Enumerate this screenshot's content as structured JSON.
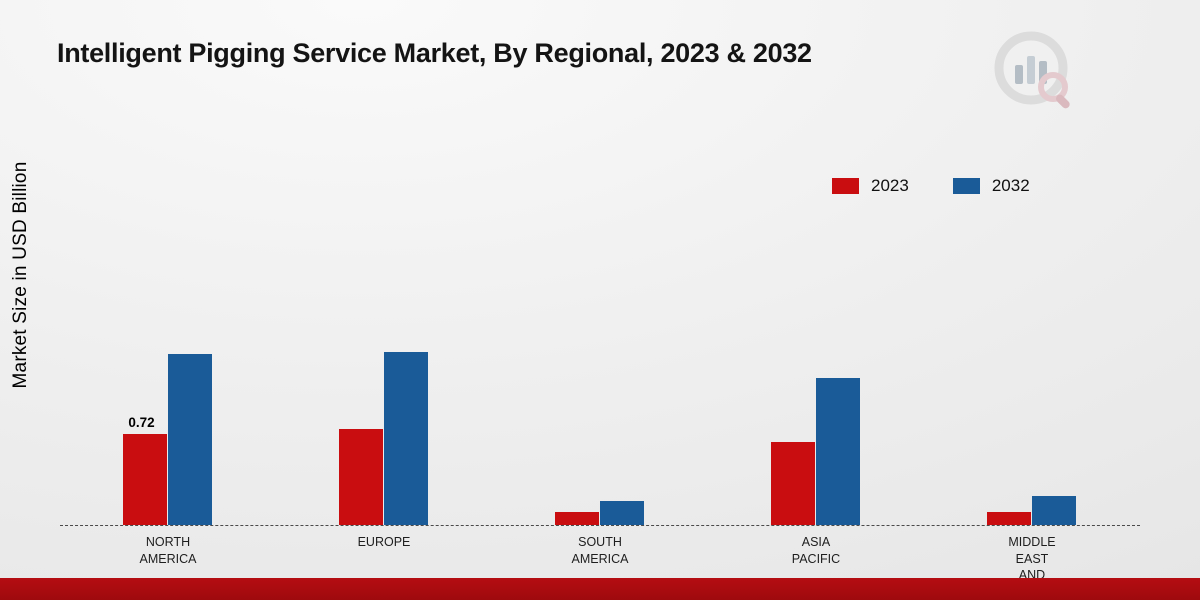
{
  "chart_data": {
    "type": "bar",
    "title": "Intelligent Pigging Service Market, By Regional, 2023 & 2032",
    "ylabel": "Market Size in USD Billion",
    "categories": [
      "NORTH\nAMERICA",
      "EUROPE",
      "SOUTH\nAMERICA",
      "ASIA\nPACIFIC",
      "MIDDLE\nEAST\nAND\nAFRICA"
    ],
    "series": [
      {
        "name": "2023",
        "color": "#c90d10",
        "values": [
          0.72,
          0.76,
          0.1,
          0.66,
          0.1
        ],
        "value_labels": [
          "0.72",
          "",
          "",
          "",
          ""
        ]
      },
      {
        "name": "2032",
        "color": "#1a5b98",
        "values": [
          1.36,
          1.37,
          0.19,
          1.17,
          0.23
        ],
        "value_labels": [
          "",
          "",
          "",
          "",
          ""
        ]
      }
    ],
    "legend_position": "top-right",
    "grid": false,
    "baseline_style": "dashed",
    "ylim": [
      0,
      3.3
    ]
  },
  "footer": {
    "band_color": "#b50d12"
  },
  "branding": {
    "logo": "market-research-chart-logo"
  }
}
